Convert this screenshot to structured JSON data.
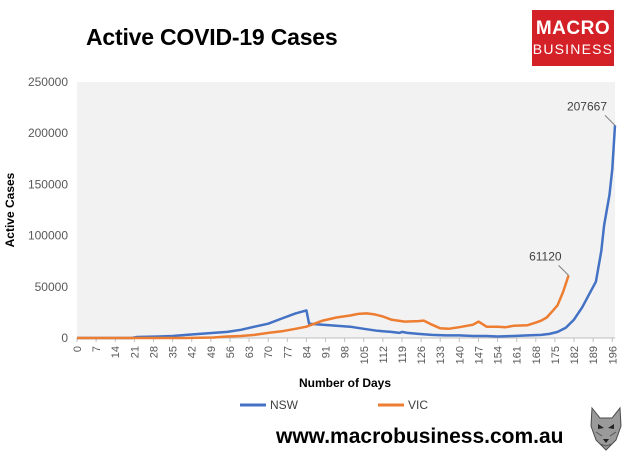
{
  "title": "Active COVID-19 Cases",
  "logo": {
    "line1": "MACRO",
    "line2": "BUSINESS"
  },
  "website": "www.macrobusiness.com.au",
  "colors": {
    "nsw": "#4472c4",
    "vic": "#ed7d31",
    "plot_bg": "#f2f2f2",
    "logo_bg": "#d42027"
  },
  "chart_data": {
    "type": "line",
    "title": "Active COVID-19 Cases",
    "xlabel": "Number of Days",
    "ylabel": "Active Cases",
    "xlim": [
      0,
      197
    ],
    "ylim": [
      0,
      250000
    ],
    "x_ticks": [
      0,
      7,
      14,
      21,
      28,
      35,
      42,
      49,
      56,
      63,
      70,
      77,
      84,
      91,
      98,
      105,
      112,
      119,
      126,
      133,
      140,
      147,
      154,
      161,
      168,
      175,
      182,
      189,
      196
    ],
    "y_ticks": [
      0,
      50000,
      100000,
      150000,
      200000,
      250000
    ],
    "grid": false,
    "legend_position": "bottom",
    "series": [
      {
        "name": "NSW",
        "x": [
          0,
          20,
          22,
          30,
          35,
          40,
          45,
          50,
          55,
          60,
          65,
          70,
          75,
          80,
          84,
          85,
          90,
          95,
          100,
          105,
          110,
          115,
          118,
          119,
          121,
          125,
          130,
          135,
          140,
          145,
          150,
          154,
          160,
          165,
          170,
          173,
          176,
          179,
          182,
          185,
          188,
          190,
          191,
          192,
          193,
          194,
          195,
          196,
          197
        ],
        "y": [
          0,
          0,
          1000,
          1500,
          2000,
          3000,
          4000,
          5000,
          6000,
          8000,
          11000,
          14000,
          19000,
          24000,
          27000,
          14000,
          13000,
          12000,
          11000,
          9000,
          7000,
          6000,
          5000,
          6000,
          5000,
          4000,
          3000,
          2500,
          2500,
          2000,
          2000,
          1500,
          2000,
          2500,
          3000,
          4000,
          6000,
          10000,
          18000,
          30000,
          45000,
          55000,
          70000,
          85000,
          110000,
          125000,
          140000,
          165000,
          207667
        ]
      },
      {
        "name": "VIC",
        "x": [
          0,
          40,
          50,
          55,
          60,
          65,
          70,
          75,
          80,
          84,
          90,
          95,
          100,
          103,
          106,
          109,
          112,
          115,
          120,
          125,
          127,
          130,
          133,
          136,
          140,
          145,
          147,
          150,
          154,
          157,
          160,
          165,
          168,
          170,
          172,
          174,
          176,
          178,
          180
        ],
        "y": [
          0,
          0,
          500,
          1500,
          2000,
          3000,
          5000,
          6500,
          9000,
          11000,
          17000,
          20000,
          22000,
          23500,
          24000,
          23000,
          21000,
          18000,
          16000,
          16500,
          17000,
          13000,
          9500,
          9000,
          10500,
          13000,
          16000,
          11000,
          11000,
          10500,
          12000,
          12500,
          15000,
          17000,
          20000,
          26000,
          32000,
          45000,
          61120
        ]
      }
    ],
    "annotations": [
      {
        "text": "207667",
        "series": "NSW",
        "x": 197,
        "y": 207667
      },
      {
        "text": "61120",
        "series": "VIC",
        "x": 180,
        "y": 61120
      }
    ]
  }
}
